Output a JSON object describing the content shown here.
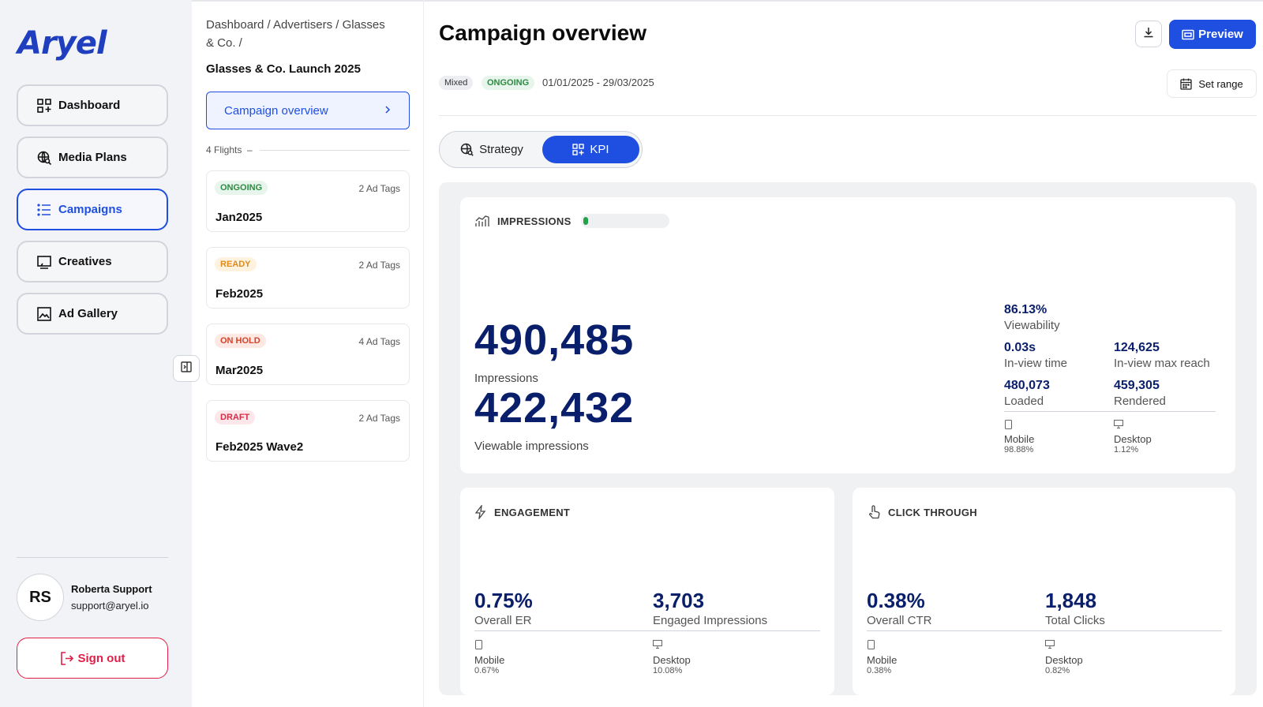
{
  "brand": {
    "logo": "Aryel"
  },
  "sidebar": {
    "items": [
      {
        "label": "Dashboard",
        "icon": "dashboard-grid-icon"
      },
      {
        "label": "Media Plans",
        "icon": "media-plans-icon"
      },
      {
        "label": "Campaigns",
        "icon": "list-icon",
        "active": true
      },
      {
        "label": "Creatives",
        "icon": "creatives-icon"
      },
      {
        "label": "Ad Gallery",
        "icon": "image-icon"
      }
    ],
    "user": {
      "initials": "RS",
      "name": "Roberta Support",
      "email": "support@aryel.io"
    },
    "signout_label": "Sign out"
  },
  "campaign": {
    "breadcrumb": "Dashboard / Advertisers / Glasses & Co. /",
    "title": "Glasses & Co. Launch 2025",
    "overview_label": "Campaign overview",
    "flights_label": "4 Flights",
    "flights": [
      {
        "status": "ONGOING",
        "tags": "2 Ad Tags",
        "name": "Jan2025"
      },
      {
        "status": "READY",
        "tags": "2 Ad Tags",
        "name": "Feb2025"
      },
      {
        "status": "ON HOLD",
        "tags": "4 Ad Tags",
        "name": "Mar2025"
      },
      {
        "status": "DRAFT",
        "tags": "2 Ad Tags",
        "name": "Feb2025 Wave2"
      }
    ]
  },
  "main": {
    "title": "Campaign overview",
    "preview_label": "Preview",
    "tag_type": "Mixed",
    "tag_status": "ONGOING",
    "date_range": "01/01/2025 - 29/03/2025",
    "set_range_label": "Set range",
    "tabs": {
      "strategy": "Strategy",
      "kpi": "KPI",
      "active": "KPI"
    }
  },
  "impressions": {
    "heading": "IMPRESSIONS",
    "progress": 0.04,
    "total": "490,485",
    "total_label": "Impressions",
    "viewable": "422,432",
    "viewable_label": "Viewable impressions",
    "viewability": "86.13%",
    "viewability_label": "Viewability",
    "inview_time": "0.03s",
    "inview_time_label": "In-view time",
    "inview_reach": "124,625",
    "inview_reach_label": "In-view max reach",
    "loaded": "480,073",
    "loaded_label": "Loaded",
    "rendered": "459,305",
    "rendered_label": "Rendered",
    "mobile_label": "Mobile",
    "mobile": "98.88%",
    "desktop_label": "Desktop",
    "desktop": "1.12%"
  },
  "engagement": {
    "heading": "ENGAGEMENT",
    "er": "0.75%",
    "er_label": "Overall ER",
    "engaged": "3,703",
    "engaged_label": "Engaged Impressions",
    "mobile_label": "Mobile",
    "mobile": "0.67%",
    "desktop_label": "Desktop",
    "desktop": "10.08%"
  },
  "clickthrough": {
    "heading": "CLICK THROUGH",
    "ctr": "0.38%",
    "ctr_label": "Overall CTR",
    "clicks": "1,848",
    "clicks_label": "Total Clicks",
    "mobile_label": "Mobile",
    "mobile": "0.38%",
    "desktop_label": "Desktop",
    "desktop": "0.82%"
  },
  "colors": {
    "accent": "#1f4fe0",
    "kpi_number": "#0a1f6b",
    "danger": "#e11d48",
    "success": "#2f8a43"
  }
}
